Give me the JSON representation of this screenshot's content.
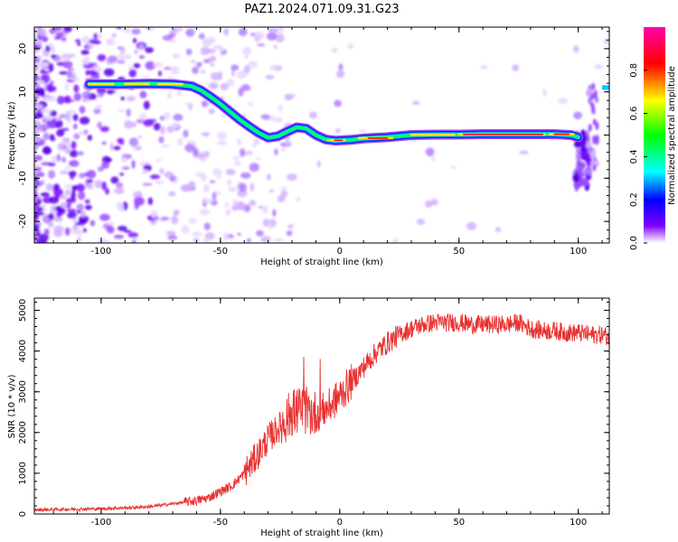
{
  "title": "PAZ1.2024.071.09.31.G23",
  "chart_data": [
    {
      "type": "heatmap",
      "name": "spectrogram",
      "xlabel": "Height of straight line (km)",
      "ylabel": "Frequency (Hz)",
      "xlim": [
        -128,
        113
      ],
      "ylim": [
        -25,
        25
      ],
      "xticks": [
        -100,
        -50,
        0,
        50,
        100
      ],
      "xtick_labels": [
        "-100",
        "-50",
        "0",
        "50",
        "100"
      ],
      "yticks": [
        -20,
        -10,
        0,
        10,
        20
      ],
      "ytick_labels": [
        "-20",
        "-10",
        "0",
        "10",
        "20"
      ],
      "ridge": {
        "x": [
          -105,
          -97,
          -90,
          -80,
          -70,
          -62,
          -58,
          -54,
          -50,
          -46,
          -42,
          -38,
          -34,
          -30,
          -26,
          -22,
          -18,
          -14,
          -10,
          -6,
          -2,
          5,
          10,
          20,
          30,
          40,
          50,
          60,
          70,
          80,
          90,
          97,
          100
        ],
        "y": [
          11.8,
          11.8,
          11.8,
          11.9,
          11.8,
          11.3,
          10.3,
          8.8,
          7.2,
          5.4,
          3.6,
          2.0,
          0.5,
          -0.6,
          -0.3,
          0.8,
          1.8,
          1.5,
          0.0,
          -1.0,
          -1.3,
          -1.1,
          -0.8,
          -0.5,
          0.0,
          0.1,
          0.1,
          0.2,
          0.2,
          0.2,
          0.2,
          0.0,
          -0.5
        ]
      },
      "colorbar": {
        "label": "Normalized spectral amplitude",
        "range": [
          0,
          1
        ],
        "ticks": [
          0.0,
          0.2,
          0.4,
          0.6,
          0.8
        ],
        "tick_labels": [
          "0.0",
          "0.2",
          "0.4",
          "0.6",
          "0.8"
        ],
        "colormap": [
          "#ffffff",
          "#7f00ff",
          "#0000ff",
          "#00ffff",
          "#00ff00",
          "#ffff00",
          "#ff0000",
          "#ff00aa"
        ]
      }
    },
    {
      "type": "line",
      "name": "snr",
      "xlabel": "Height of straight line (km)",
      "ylabel": "SNR (10 * v/v)",
      "xlim": [
        -128,
        113
      ],
      "ylim": [
        0,
        5300
      ],
      "xticks": [
        -100,
        -50,
        0,
        50,
        100
      ],
      "xtick_labels": [
        "-100",
        "-50",
        "0",
        "50",
        "100"
      ],
      "yticks": [
        0,
        1000,
        2000,
        3000,
        4000,
        5000
      ],
      "ytick_labels": [
        "0",
        "1000",
        "2000",
        "3000",
        "4000",
        "5000"
      ],
      "color": "#e8312f",
      "x": [
        -128,
        -120,
        -110,
        -100,
        -90,
        -80,
        -70,
        -60,
        -55,
        -50,
        -45,
        -40,
        -35,
        -30,
        -25,
        -20,
        -15,
        -10,
        -5,
        0,
        5,
        10,
        15,
        20,
        25,
        30,
        35,
        40,
        45,
        50,
        55,
        60,
        65,
        70,
        75,
        80,
        85,
        90,
        95,
        100,
        105,
        110,
        113
      ],
      "y": [
        100,
        110,
        120,
        130,
        150,
        180,
        250,
        330,
        400,
        550,
        700,
        1000,
        1400,
        1850,
        2150,
        2500,
        2550,
        2450,
        2600,
        2900,
        3250,
        3600,
        3950,
        4200,
        4400,
        4550,
        4650,
        4700,
        4700,
        4700,
        4650,
        4650,
        4650,
        4650,
        4700,
        4550,
        4500,
        4500,
        4450,
        4450,
        4400,
        4400,
        4350
      ]
    }
  ]
}
